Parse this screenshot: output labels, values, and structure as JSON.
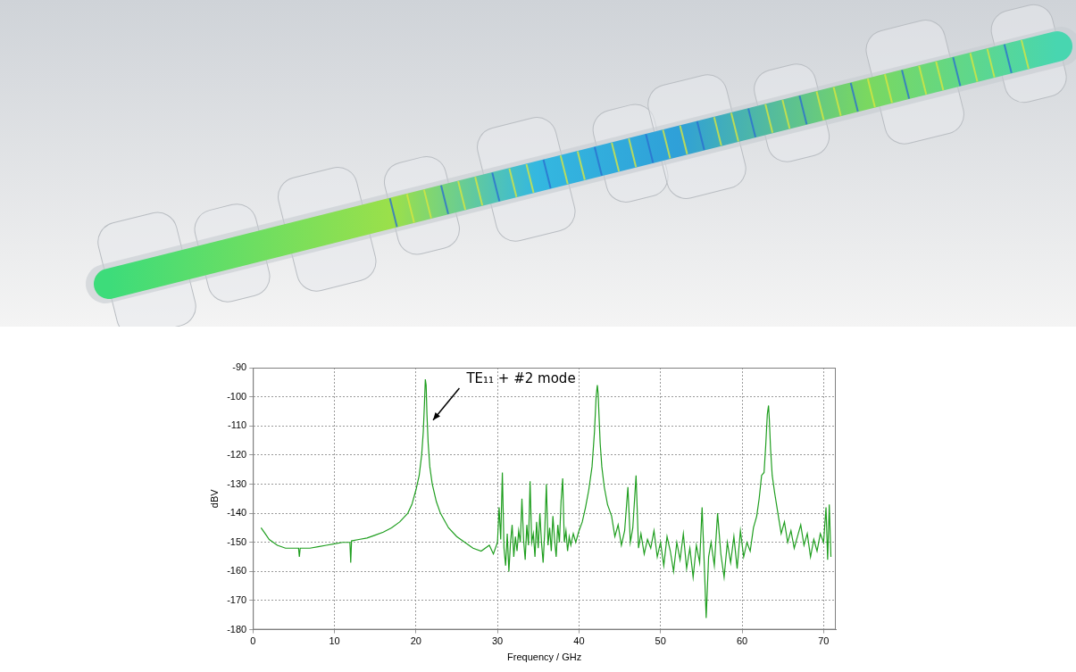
{
  "chart_data": {
    "type": "line",
    "x_label": "Frequency / GHz",
    "y_label": "dBV",
    "xlim": [
      0,
      71.5
    ],
    "xticks": [
      0,
      10,
      20,
      30,
      40,
      50,
      60,
      70
    ],
    "ylim": [
      -180,
      -90
    ],
    "yticks": [
      -180,
      -170,
      -160,
      -150,
      -140,
      -130,
      -120,
      -110,
      -100,
      -90
    ],
    "grid": true,
    "annotations": [
      {
        "text": "TE₁₁ + #2 mode",
        "x": 26.2,
        "y": -94,
        "arrow_to": [
          22.1,
          -108
        ]
      }
    ],
    "series": [
      {
        "color": "#1f9e1f",
        "x": [
          1,
          1.5,
          2,
          3,
          4,
          5,
          5.6,
          5.7,
          5.8,
          6,
          7,
          8,
          9,
          10,
          11,
          11.9,
          12,
          12.1,
          13,
          14,
          15,
          16,
          17,
          18,
          19,
          19.5,
          20,
          20.4,
          20.7,
          20.9,
          21.05,
          21.15,
          21.25,
          21.35,
          21.5,
          21.7,
          22,
          22.5,
          23,
          24,
          25,
          26,
          27,
          28,
          29,
          29.5,
          30,
          30.2,
          30.4,
          30.6,
          30.8,
          31,
          31.2,
          31.4,
          31.6,
          31.8,
          32,
          32.2,
          32.4,
          32.6,
          32.8,
          33,
          33.2,
          33.4,
          33.6,
          33.8,
          34,
          34.2,
          34.4,
          34.6,
          34.8,
          35,
          35.2,
          35.4,
          35.6,
          35.8,
          36,
          36.2,
          36.4,
          36.6,
          36.8,
          37,
          37.2,
          37.4,
          37.6,
          37.8,
          38,
          38.2,
          38.4,
          38.6,
          38.8,
          39,
          39.3,
          39.6,
          40,
          40.4,
          40.8,
          41.2,
          41.6,
          41.9,
          42.1,
          42.25,
          42.35,
          42.45,
          42.6,
          42.8,
          43.1,
          43.5,
          44,
          44.4,
          44.8,
          45.2,
          45.6,
          46,
          46.3,
          46.6,
          47,
          47.3,
          47.6,
          48,
          48.4,
          48.8,
          49.2,
          49.6,
          50,
          50.4,
          50.8,
          51.2,
          51.6,
          52,
          52.4,
          52.8,
          53.2,
          53.6,
          54,
          54.4,
          54.8,
          55.1,
          55.4,
          55.6,
          55.9,
          56.2,
          56.6,
          57,
          57.4,
          57.8,
          58.2,
          58.6,
          59,
          59.4,
          59.8,
          60.2,
          60.6,
          61,
          61.4,
          61.8,
          62.1,
          62.4,
          62.7,
          62.9,
          63.1,
          63.25,
          63.35,
          63.5,
          63.7,
          64,
          64.4,
          64.8,
          65.2,
          65.6,
          66,
          66.4,
          66.8,
          67.2,
          67.6,
          68,
          68.4,
          68.8,
          69.2,
          69.6,
          70,
          70.3,
          70.5,
          70.7,
          70.9
        ],
        "values": [
          -145,
          -147,
          -149,
          -151,
          -152,
          -152,
          -152,
          -155,
          -152,
          -152,
          -152,
          -151.5,
          -151,
          -150.5,
          -150,
          -150,
          -157,
          -149.5,
          -149,
          -148.5,
          -147.5,
          -146.5,
          -145,
          -143,
          -140,
          -137,
          -132,
          -127,
          -120,
          -112,
          -102,
          -94,
          -96,
          -106,
          -116,
          -124,
          -130,
          -136,
          -140,
          -145,
          -148,
          -150,
          -152,
          -153,
          -151,
          -154,
          -150,
          -138,
          -149,
          -126,
          -152,
          -158,
          -147,
          -160,
          -150,
          -144,
          -155,
          -148,
          -153,
          -146,
          -150,
          -135,
          -149,
          -156,
          -144,
          -151,
          -129,
          -150,
          -147,
          -155,
          -143,
          -152,
          -140,
          -150,
          -157,
          -146,
          -130,
          -151,
          -145,
          -153,
          -141,
          -149,
          -155,
          -144,
          -150,
          -136,
          -128,
          -150,
          -146,
          -153,
          -148,
          -151,
          -147,
          -150,
          -146,
          -143,
          -138,
          -132,
          -124,
          -112,
          -100,
          -96,
          -99,
          -106,
          -116,
          -124,
          -131,
          -137,
          -141,
          -148,
          -144,
          -151,
          -146,
          -131,
          -150,
          -145,
          -127,
          -152,
          -147,
          -154,
          -149,
          -152,
          -146,
          -155,
          -150,
          -158,
          -148,
          -153,
          -160,
          -150,
          -156,
          -147,
          -159,
          -152,
          -162,
          -151,
          -157,
          -138,
          -160,
          -176,
          -155,
          -150,
          -158,
          -140,
          -154,
          -162,
          -150,
          -157,
          -148,
          -159,
          -146,
          -155,
          -150,
          -153,
          -145,
          -141,
          -135,
          -127,
          -126,
          -117,
          -106,
          -103,
          -108,
          -118,
          -127,
          -133,
          -140,
          -147,
          -143,
          -150,
          -146,
          -152,
          -148,
          -144,
          -151,
          -147,
          -155,
          -149,
          -153,
          -147,
          -150,
          -138,
          -156,
          -137,
          -155
        ]
      }
    ]
  }
}
